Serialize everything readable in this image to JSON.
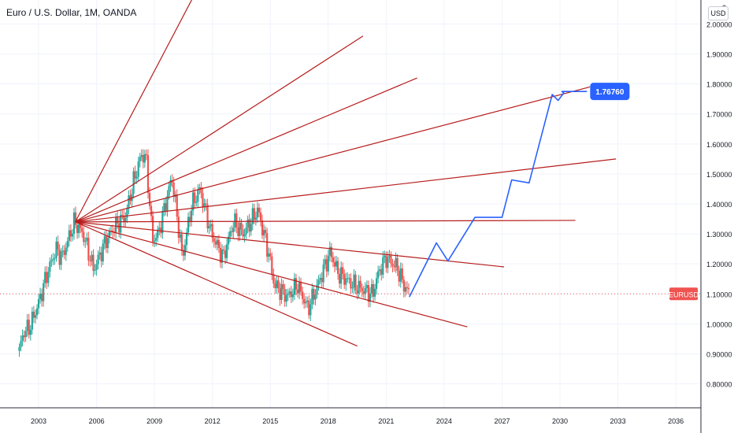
{
  "header": {
    "title": "Euro / U.S. Dollar, 1M, OANDA",
    "currency_button": "USD",
    "top_axis_value": "2"
  },
  "colors": {
    "up_candle": "#26a69a",
    "down_candle": "#ef5350",
    "fan_lines": "#b71c1c",
    "projection": "#2962ff",
    "price_line": "#ef5350",
    "target_label_bg": "#2962ff",
    "price_label_bg": "#ef5350",
    "grid": "#f0f3fa",
    "axis_text": "#131722"
  },
  "chart_data": {
    "type": "candlestick",
    "symbol": "EURUSD",
    "timeframe": "1M",
    "x_ticks": [
      "2003",
      "2006",
      "2009",
      "2012",
      "2015",
      "2018",
      "2021",
      "2024",
      "2027",
      "2030",
      "2033",
      "2036"
    ],
    "y_ticks": [
      "0.80000",
      "0.90000",
      "1.00000",
      "1.10000",
      "1.20000",
      "1.30000",
      "1.40000",
      "1.50000",
      "1.60000",
      "1.70000",
      "1.80000",
      "1.90000",
      "2.00000"
    ],
    "xlim": [
      2001.0,
      2037.3
    ],
    "ylim": [
      0.72,
      2.08
    ],
    "grid": true,
    "price_anchors": [
      [
        2002.0,
        0.91
      ],
      [
        2002.2,
        0.97
      ],
      [
        2002.55,
        0.99
      ],
      [
        2003.0,
        1.07
      ],
      [
        2003.4,
        1.16
      ],
      [
        2003.9,
        1.25
      ],
      [
        2004.2,
        1.22
      ],
      [
        2004.85,
        1.34
      ],
      [
        2005.3,
        1.3
      ],
      [
        2005.85,
        1.18
      ],
      [
        2006.5,
        1.28
      ],
      [
        2006.9,
        1.32
      ],
      [
        2007.5,
        1.36
      ],
      [
        2007.9,
        1.47
      ],
      [
        2008.3,
        1.56
      ],
      [
        2008.55,
        1.56
      ],
      [
        2008.9,
        1.28
      ],
      [
        2009.2,
        1.3
      ],
      [
        2009.9,
        1.49
      ],
      [
        2010.45,
        1.22
      ],
      [
        2010.9,
        1.39
      ],
      [
        2011.35,
        1.45
      ],
      [
        2011.95,
        1.3
      ],
      [
        2012.55,
        1.22
      ],
      [
        2013.1,
        1.34
      ],
      [
        2013.6,
        1.3
      ],
      [
        2014.35,
        1.38
      ],
      [
        2014.9,
        1.24
      ],
      [
        2015.2,
        1.13
      ],
      [
        2015.9,
        1.09
      ],
      [
        2016.4,
        1.13
      ],
      [
        2016.95,
        1.05
      ],
      [
        2017.4,
        1.12
      ],
      [
        2018.1,
        1.24
      ],
      [
        2018.5,
        1.17
      ],
      [
        2019.3,
        1.13
      ],
      [
        2019.9,
        1.11
      ],
      [
        2020.3,
        1.1
      ],
      [
        2020.65,
        1.18
      ],
      [
        2021.0,
        1.22
      ],
      [
        2021.35,
        1.2
      ],
      [
        2021.55,
        1.19
      ],
      [
        2021.9,
        1.13
      ],
      [
        2022.2,
        1.1
      ]
    ],
    "fan": {
      "pivot": [
        2004.9,
        1.34
      ],
      "line_ends": [
        [
          2011.25,
          2.12
        ],
        [
          2019.8,
          1.96
        ],
        [
          2022.6,
          1.82
        ],
        [
          2031.55,
          1.79
        ],
        [
          2032.9,
          1.55
        ],
        [
          2030.8,
          1.345
        ],
        [
          2027.1,
          1.19
        ],
        [
          2025.2,
          0.99
        ],
        [
          2019.5,
          0.926
        ]
      ]
    },
    "projection_path": [
      [
        2022.2,
        1.09
      ],
      [
        2023.6,
        1.27
      ],
      [
        2024.2,
        1.21
      ],
      [
        2025.6,
        1.355
      ],
      [
        2027.0,
        1.355
      ],
      [
        2027.5,
        1.48
      ],
      [
        2028.4,
        1.47
      ],
      [
        2029.6,
        1.765
      ],
      [
        2029.9,
        1.745
      ],
      [
        2030.2,
        1.77
      ],
      [
        2030.1,
        1.775
      ],
      [
        2031.4,
        1.775
      ]
    ],
    "target_label": "1.76760",
    "current_price": 1.1,
    "current_price_label": "EURUSD"
  }
}
